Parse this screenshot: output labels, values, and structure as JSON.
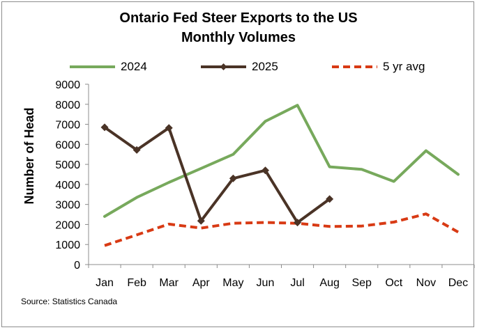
{
  "chart_data": {
    "type": "line",
    "title_lines": [
      "Ontario Fed Steer Exports to the US",
      "Monthly Volumes"
    ],
    "ylabel": "Number of Head",
    "xlabel": "",
    "ylim": [
      0,
      9000
    ],
    "yticks": [
      0,
      1000,
      2000,
      3000,
      4000,
      5000,
      6000,
      7000,
      8000,
      9000
    ],
    "categories": [
      "Jan",
      "Feb",
      "Mar",
      "Apr",
      "May",
      "Jun",
      "Jul",
      "Aug",
      "Sep",
      "Oct",
      "Nov",
      "Dec"
    ],
    "grid": false,
    "legend_position": "top",
    "series": [
      {
        "name": "2024",
        "color": "#77a95c",
        "style": "solid",
        "marker": "none",
        "values": [
          2400,
          3350,
          4100,
          4800,
          5500,
          7150,
          7950,
          4880,
          4750,
          4150,
          5680,
          4500
        ]
      },
      {
        "name": "2025",
        "color": "#4a3326",
        "style": "solid",
        "marker": "diamond",
        "values": [
          6850,
          5720,
          6820,
          2180,
          4300,
          4700,
          2100,
          3270,
          null,
          null,
          null,
          null
        ]
      },
      {
        "name": "5 yr avg",
        "color": "#d83a14",
        "style": "dashed",
        "marker": "none",
        "values": [
          950,
          1480,
          2020,
          1820,
          2060,
          2100,
          2060,
          1900,
          1920,
          2120,
          2530,
          1620
        ]
      }
    ],
    "source": "Source: Statistics Canada"
  }
}
